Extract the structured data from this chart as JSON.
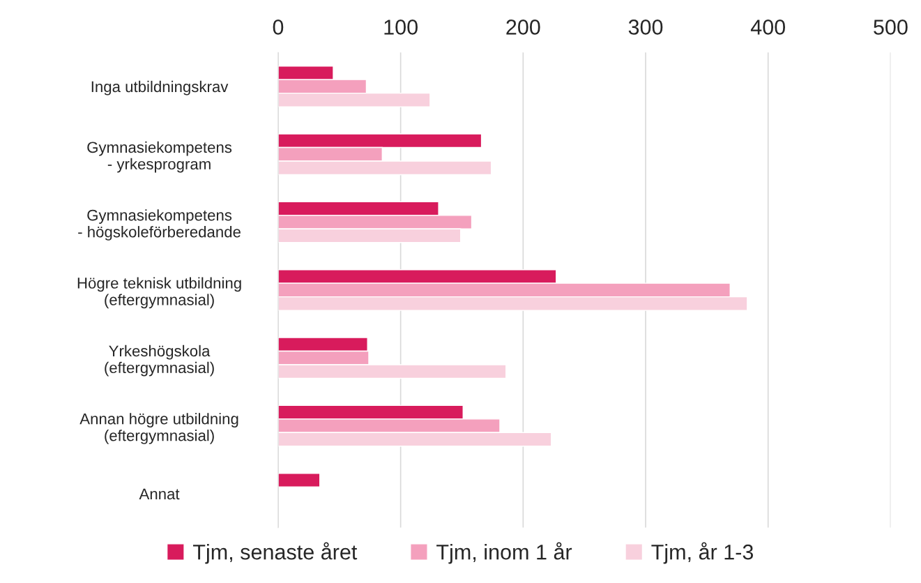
{
  "chart_data": {
    "type": "bar",
    "orientation": "horizontal",
    "categories": [
      "Inga utbildningskrav",
      "Gymnasiekompetens\n- yrkesprogram",
      "Gymnasiekompetens\n- högskoleförberedande",
      "Högre teknisk utbildning\n(eftergymnasial)",
      "Yrkeshögskola\n(eftergymnasial)",
      "Annan högre utbildning\n(eftergymnasial)",
      "Annat"
    ],
    "series": [
      {
        "name": "Tjm, senaste året",
        "color": "#d81b5c",
        "values": [
          45,
          166,
          131,
          227,
          73,
          151,
          34
        ]
      },
      {
        "name": "Tjm, inom 1 år",
        "color": "#f4a0bd",
        "values": [
          72,
          85,
          158,
          369,
          74,
          181,
          null
        ]
      },
      {
        "name": "Tjm, år 1-3",
        "color": "#f8d0dd",
        "values": [
          124,
          174,
          149,
          383,
          186,
          223,
          null
        ]
      }
    ],
    "xlim": [
      0,
      500
    ],
    "xticks": [
      0,
      100,
      200,
      300,
      400,
      500
    ],
    "grid": "x",
    "legend": "bottom"
  }
}
